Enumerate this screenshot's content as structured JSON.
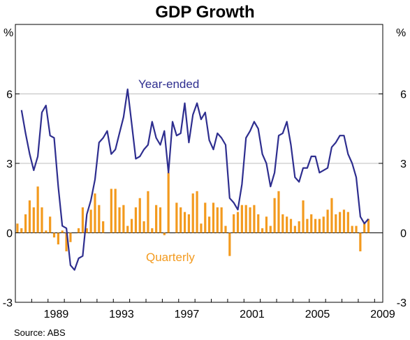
{
  "chart_data": {
    "type": "bar+line",
    "title": "GDP Growth",
    "y_unit_left": "%",
    "y_unit_right": "%",
    "source": "Source: ABS",
    "ylim": [
      -3,
      9
    ],
    "yticks": [
      -3,
      0,
      3,
      6
    ],
    "xticks": [
      "1989",
      "1993",
      "1997",
      "2001",
      "2005",
      "2009"
    ],
    "grid": "horizontal at 3 and 6, zero line",
    "colors": {
      "year_ended": "#2e2e8f",
      "quarterly": "#f39a1e"
    },
    "series": [
      {
        "name": "Year-ended",
        "kind": "line",
        "points": [
          [
            "1987-06",
            5.3
          ],
          [
            "1987-09",
            4.3
          ],
          [
            "1987-12",
            3.4
          ],
          [
            "1988-03",
            2.7
          ],
          [
            "1988-06",
            3.3
          ],
          [
            "1988-09",
            5.2
          ],
          [
            "1988-12",
            5.5
          ],
          [
            "1989-03",
            4.2
          ],
          [
            "1989-06",
            4.1
          ],
          [
            "1989-09",
            2.0
          ],
          [
            "1989-12",
            0.3
          ],
          [
            "1990-03",
            0.2
          ],
          [
            "1990-06",
            -1.4
          ],
          [
            "1990-09",
            -1.6
          ],
          [
            "1990-12",
            -1.1
          ],
          [
            "1991-03",
            -1.0
          ],
          [
            "1991-06",
            0.8
          ],
          [
            "1991-09",
            1.4
          ],
          [
            "1991-12",
            2.3
          ],
          [
            "1992-03",
            3.9
          ],
          [
            "1992-06",
            4.1
          ],
          [
            "1992-09",
            4.4
          ],
          [
            "1992-12",
            3.4
          ],
          [
            "1993-03",
            3.6
          ],
          [
            "1993-06",
            4.3
          ],
          [
            "1993-09",
            5.0
          ],
          [
            "1993-12",
            6.2
          ],
          [
            "1994-03",
            4.7
          ],
          [
            "1994-06",
            3.2
          ],
          [
            "1994-09",
            3.3
          ],
          [
            "1994-12",
            3.6
          ],
          [
            "1995-03",
            3.8
          ],
          [
            "1995-06",
            4.8
          ],
          [
            "1995-09",
            4.1
          ],
          [
            "1995-12",
            3.8
          ],
          [
            "1996-03",
            4.4
          ],
          [
            "1996-06",
            2.6
          ],
          [
            "1996-09",
            4.8
          ],
          [
            "1996-12",
            4.2
          ],
          [
            "1997-03",
            4.3
          ],
          [
            "1997-06",
            5.6
          ],
          [
            "1997-09",
            3.9
          ],
          [
            "1997-12",
            5.1
          ],
          [
            "1998-03",
            5.6
          ],
          [
            "1998-06",
            4.9
          ],
          [
            "1998-09",
            5.2
          ],
          [
            "1998-12",
            4.0
          ],
          [
            "1999-03",
            3.6
          ],
          [
            "1999-06",
            4.3
          ],
          [
            "1999-09",
            4.1
          ],
          [
            "1999-12",
            3.8
          ],
          [
            "2000-03",
            1.5
          ],
          [
            "2000-06",
            1.3
          ],
          [
            "2000-09",
            1.0
          ],
          [
            "2000-12",
            2.1
          ],
          [
            "2001-03",
            4.1
          ],
          [
            "2001-06",
            4.4
          ],
          [
            "2001-09",
            4.8
          ],
          [
            "2001-12",
            4.5
          ],
          [
            "2002-03",
            3.4
          ],
          [
            "2002-06",
            3.0
          ],
          [
            "2002-09",
            2.0
          ],
          [
            "2002-12",
            2.6
          ],
          [
            "2003-03",
            4.2
          ],
          [
            "2003-06",
            4.3
          ],
          [
            "2003-09",
            4.8
          ],
          [
            "2003-12",
            3.8
          ],
          [
            "2004-03",
            2.4
          ],
          [
            "2004-06",
            2.2
          ],
          [
            "2004-09",
            2.8
          ],
          [
            "2004-12",
            2.8
          ],
          [
            "2005-03",
            3.3
          ],
          [
            "2005-06",
            3.3
          ],
          [
            "2005-09",
            2.6
          ],
          [
            "2005-12",
            2.7
          ],
          [
            "2006-03",
            2.8
          ],
          [
            "2006-06",
            3.7
          ],
          [
            "2006-09",
            3.9
          ],
          [
            "2006-12",
            4.2
          ],
          [
            "2007-03",
            4.2
          ],
          [
            "2007-06",
            3.4
          ],
          [
            "2007-09",
            3.0
          ],
          [
            "2007-12",
            2.4
          ],
          [
            "2008-03",
            0.7
          ],
          [
            "2008-06",
            0.4
          ],
          [
            "2008-09",
            0.6
          ]
        ]
      },
      {
        "name": "Quarterly",
        "kind": "bar",
        "points": [
          [
            "1987-03",
            0.4
          ],
          [
            "1987-06",
            0.2
          ],
          [
            "1987-09",
            0.8
          ],
          [
            "1987-12",
            1.4
          ],
          [
            "1988-03",
            1.1
          ],
          [
            "1988-06",
            2.0
          ],
          [
            "1988-09",
            1.1
          ],
          [
            "1988-12",
            0.1
          ],
          [
            "1989-03",
            0.7
          ],
          [
            "1989-06",
            -0.2
          ],
          [
            "1989-09",
            -0.5
          ],
          [
            "1989-12",
            0.1
          ],
          [
            "1990-03",
            -0.8
          ],
          [
            "1990-06",
            -0.4
          ],
          [
            "1990-09",
            0.0
          ],
          [
            "1990-12",
            0.2
          ],
          [
            "1991-03",
            1.1
          ],
          [
            "1991-06",
            0.2
          ],
          [
            "1991-09",
            1.0
          ],
          [
            "1991-12",
            1.7
          ],
          [
            "1992-03",
            1.2
          ],
          [
            "1992-06",
            0.5
          ],
          [
            "1992-09",
            0.0
          ],
          [
            "1992-12",
            1.9
          ],
          [
            "1993-03",
            1.9
          ],
          [
            "1993-06",
            1.1
          ],
          [
            "1993-09",
            1.2
          ],
          [
            "1993-12",
            0.3
          ],
          [
            "1994-03",
            0.6
          ],
          [
            "1994-06",
            1.1
          ],
          [
            "1994-09",
            1.5
          ],
          [
            "1994-12",
            0.5
          ],
          [
            "1995-03",
            1.8
          ],
          [
            "1995-06",
            0.2
          ],
          [
            "1995-09",
            1.2
          ],
          [
            "1995-12",
            1.1
          ],
          [
            "1996-03",
            -0.1
          ],
          [
            "1996-06",
            2.6
          ],
          [
            "1996-09",
            0.0
          ],
          [
            "1996-12",
            1.3
          ],
          [
            "1997-03",
            1.1
          ],
          [
            "1997-06",
            0.9
          ],
          [
            "1997-09",
            0.8
          ],
          [
            "1997-12",
            1.7
          ],
          [
            "1998-03",
            1.8
          ],
          [
            "1998-06",
            0.4
          ],
          [
            "1998-09",
            1.3
          ],
          [
            "1998-12",
            0.7
          ],
          [
            "1999-03",
            1.3
          ],
          [
            "1999-06",
            1.1
          ],
          [
            "1999-09",
            1.1
          ],
          [
            "1999-12",
            0.3
          ],
          [
            "2000-03",
            -1.0
          ],
          [
            "2000-06",
            0.8
          ],
          [
            "2000-09",
            0.9
          ],
          [
            "2000-12",
            1.2
          ],
          [
            "2001-03",
            1.2
          ],
          [
            "2001-06",
            1.1
          ],
          [
            "2001-09",
            1.2
          ],
          [
            "2001-12",
            0.8
          ],
          [
            "2002-03",
            0.2
          ],
          [
            "2002-06",
            0.7
          ],
          [
            "2002-09",
            0.3
          ],
          [
            "2002-12",
            1.5
          ],
          [
            "2003-03",
            1.8
          ],
          [
            "2003-06",
            0.8
          ],
          [
            "2003-09",
            0.7
          ],
          [
            "2003-12",
            0.6
          ],
          [
            "2004-03",
            0.3
          ],
          [
            "2004-06",
            0.5
          ],
          [
            "2004-09",
            1.4
          ],
          [
            "2004-12",
            0.6
          ],
          [
            "2005-03",
            0.8
          ],
          [
            "2005-06",
            0.6
          ],
          [
            "2005-09",
            0.6
          ],
          [
            "2005-12",
            0.7
          ],
          [
            "2006-03",
            1.0
          ],
          [
            "2006-06",
            1.5
          ],
          [
            "2006-09",
            0.8
          ],
          [
            "2006-12",
            0.9
          ],
          [
            "2007-03",
            1.0
          ],
          [
            "2007-06",
            0.9
          ],
          [
            "2007-09",
            0.3
          ],
          [
            "2007-12",
            0.3
          ],
          [
            "2008-03",
            -0.8
          ],
          [
            "2008-06",
            0.4
          ],
          [
            "2008-09",
            0.6
          ]
        ]
      }
    ]
  }
}
